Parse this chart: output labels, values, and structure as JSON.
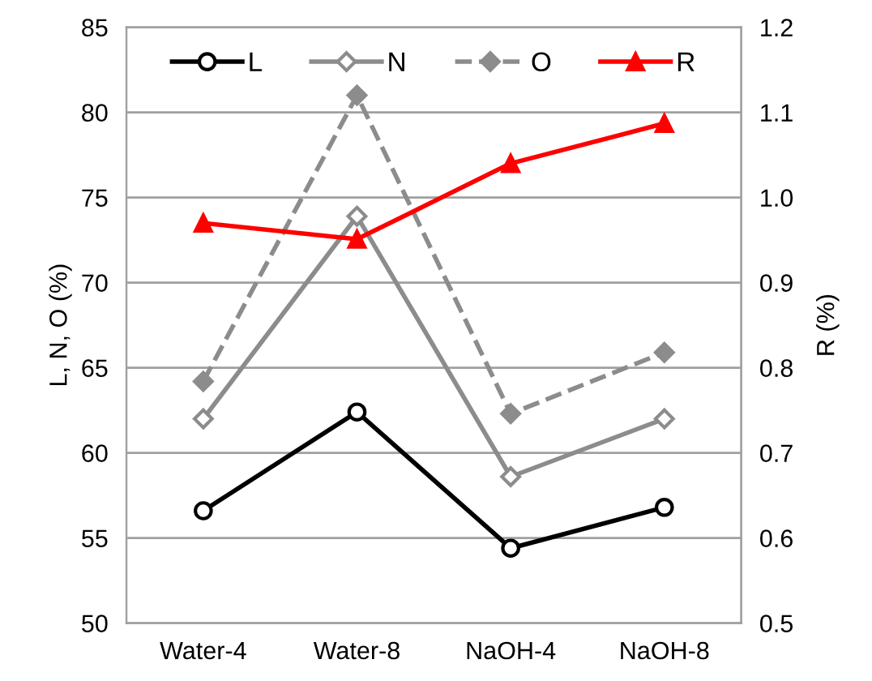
{
  "chart_data": {
    "type": "line",
    "ylabel": "L, N, O (%)",
    "y2label": "R (%)",
    "categories": [
      "Water-4",
      "Water-8",
      "NaOH-4",
      "NaOH-8"
    ],
    "series": [
      {
        "name": "L",
        "color": "#000000",
        "values": [
          56.6,
          62.4,
          54.4,
          56.8
        ],
        "marker": "circle",
        "line_style": "solid"
      },
      {
        "name": "N",
        "color": "#8c8c8c",
        "values": [
          62.0,
          73.9,
          58.6,
          62.0
        ],
        "marker": "diamond",
        "line_style": "solid"
      },
      {
        "name": "O",
        "color": "#8c8c8c",
        "values": [
          64.2,
          81.0,
          62.3,
          65.9
        ],
        "marker": "diamond",
        "line_style": "dashed"
      },
      {
        "name": "R",
        "color": "#ff0000",
        "values": [
          0.97,
          0.951,
          1.04,
          1.087
        ],
        "marker": "triangle",
        "line_style": "solid",
        "axis": "y2"
      }
    ],
    "ylim": [
      50,
      85
    ],
    "yticks": [
      50,
      55,
      60,
      65,
      70,
      75,
      80,
      85
    ],
    "y2lim": [
      0.5,
      1.2
    ],
    "y2ticks": [
      {
        "value": 0.5,
        "label": "0.5"
      },
      {
        "value": 0.6,
        "label": "0.6"
      },
      {
        "value": 0.7,
        "label": "0.7"
      },
      {
        "value": 0.8,
        "label": "0.8"
      },
      {
        "value": 0.9,
        "label": "0.9"
      },
      {
        "value": 1.0,
        "label": "1.0"
      },
      {
        "value": 1.1,
        "label": "1.1"
      },
      {
        "value": 1.2,
        "label": "1.2"
      }
    ],
    "grid": "y",
    "legend": "top"
  }
}
